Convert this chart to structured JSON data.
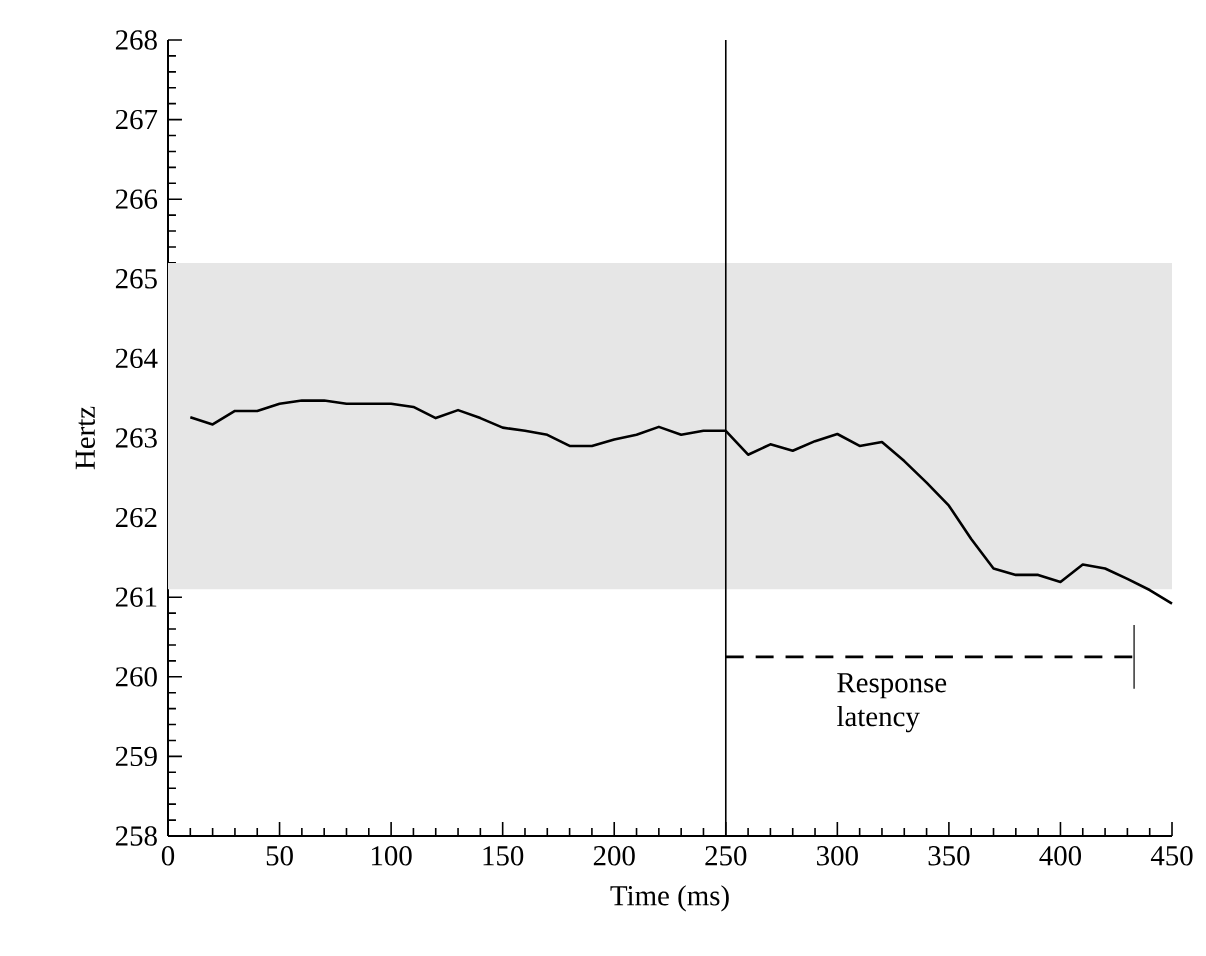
{
  "chart_data": {
    "type": "line",
    "xlabel": "Time (ms)",
    "ylabel": "Hertz",
    "xlim": [
      0,
      450
    ],
    "ylim": [
      258,
      268
    ],
    "xticks": [
      0,
      50,
      100,
      150,
      200,
      250,
      300,
      350,
      400,
      450
    ],
    "yticks": [
      258,
      259,
      260,
      261,
      262,
      263,
      264,
      265,
      266,
      267,
      268
    ],
    "series": [
      {
        "color": "#000000",
        "x": [
          10,
          20,
          30,
          40,
          50,
          60,
          70,
          80,
          90,
          100,
          110,
          120,
          130,
          140,
          150,
          160,
          170,
          180,
          190,
          200,
          210,
          220,
          230,
          240,
          250,
          260,
          270,
          280,
          290,
          300,
          310,
          320,
          330,
          340,
          350,
          360,
          370,
          380,
          390,
          400,
          410,
          420,
          430,
          440,
          450
        ],
        "values": [
          263.26,
          263.17,
          263.34,
          263.34,
          263.43,
          263.47,
          263.47,
          263.43,
          263.43,
          263.43,
          263.39,
          263.25,
          263.35,
          263.25,
          263.13,
          263.09,
          263.04,
          262.9,
          262.9,
          262.98,
          263.04,
          263.14,
          263.04,
          263.09,
          263.09,
          262.79,
          262.92,
          262.84,
          262.96,
          263.05,
          262.9,
          262.95,
          262.71,
          262.44,
          262.15,
          261.73,
          261.36,
          261.28,
          261.28,
          261.19,
          261.41,
          261.36,
          261.23,
          261.09,
          260.92
        ]
      },
      {
        "color": "#000000",
        "line_style": "dashed",
        "x": [
          250,
          433
        ],
        "values": [
          260.25,
          260.25
        ],
        "errors": [
          null,
          [
            259.85,
            260.65
          ]
        ]
      }
    ],
    "ref_lines": [
      {
        "axis": "x",
        "value": 250,
        "color": "#000000"
      }
    ],
    "bands": [
      {
        "axis": "y",
        "from": 261.1,
        "to": 265.2,
        "color": "#e6e6e6"
      }
    ],
    "annotations": [
      "Response latency"
    ]
  }
}
